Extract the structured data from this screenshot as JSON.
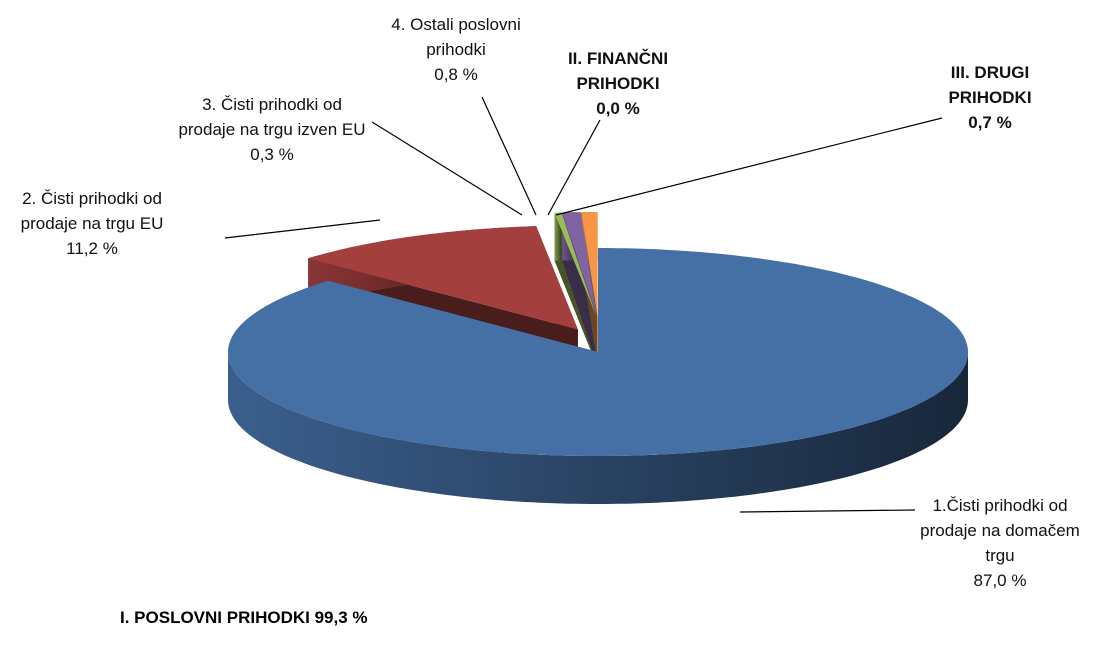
{
  "chart_data": {
    "type": "pie3d",
    "categories": [
      "1.Čisti prihodki od prodaje na domačem trgu",
      "2. Čisti prihodki od prodaje na trgu EU",
      "3. Čisti prihodki od prodaje na trgu izven EU",
      "4. Ostali poslovni prihodki",
      "II. FINANČNI PRIHODKI",
      "III. DRUGI PRIHODKI"
    ],
    "values": [
      87.0,
      11.2,
      0.3,
      0.8,
      0.0,
      0.7
    ],
    "value_labels": [
      "87,0 %",
      "11,2 %",
      "0,3 %",
      "0,8 %",
      "0,0 %",
      "0,7 %"
    ],
    "colors": [
      "#4570a6",
      "#a3403e",
      "#9bbb59",
      "#8064a2",
      "#4bacc6",
      "#f79646"
    ],
    "bold_labels": [
      false,
      false,
      false,
      false,
      true,
      true
    ],
    "annotation": "I. POSLOVNI PRIHODKI 99,3 %"
  }
}
